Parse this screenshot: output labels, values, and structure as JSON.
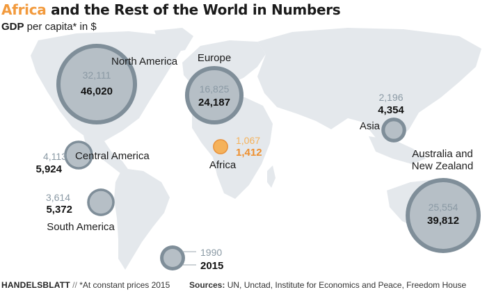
{
  "header": {
    "title_highlight": "Africa",
    "title_rest": " and the Rest of the World in Numbers",
    "subtitle_bold": "GDP",
    "subtitle_rest": " per capita* in $"
  },
  "footer": {
    "brand": "HANDELSBLATT",
    "separator": " // ",
    "note": "*At constant prices 2015",
    "sources_label": "Sources:",
    "sources_text": " UN, Unctad, Institute for Economics and Peace, Freedom House"
  },
  "colors": {
    "land": "#e4e8ec",
    "bubble_fill": "#b6bfc6",
    "bubble_ring": "#7f8e99",
    "africa_fill": "#f5b25b",
    "africa_ring": "#e8913a",
    "value_1990": "#8a99a4",
    "value_1990_africa": "#f5b25b",
    "value_2015": "#111111",
    "value_2015_africa": "#ee8f2e"
  },
  "chart_data": {
    "type": "bubble-map",
    "title": "Africa and the Rest of the World in Numbers",
    "subtitle": "GDP per capita* in $",
    "legend": {
      "labels": [
        "1990",
        "2015"
      ]
    },
    "series": [
      {
        "region": "North America",
        "y1990": 32111,
        "y2015": 46020,
        "y1990_label": "32,111",
        "y2015_label": "46,020"
      },
      {
        "region": "Europe",
        "y1990": 16825,
        "y2015": 24187,
        "y1990_label": "16,825",
        "y2015_label": "24,187"
      },
      {
        "region": "Central America",
        "y1990": 4113,
        "y2015": 5924,
        "y1990_label": "4,113",
        "y2015_label": "5,924"
      },
      {
        "region": "South America",
        "y1990": 3614,
        "y2015": 5372,
        "y1990_label": "3,614",
        "y2015_label": "5,372"
      },
      {
        "region": "Africa",
        "y1990": 1067,
        "y2015": 1412,
        "y1990_label": "1,067",
        "y2015_label": "1,412"
      },
      {
        "region": "Asia",
        "y1990": 2196,
        "y2015": 4354,
        "y1990_label": "2,196",
        "y2015_label": "4,354"
      },
      {
        "region": "Australia and\nNew Zealand",
        "y1990": 25554,
        "y2015": 39812,
        "y1990_label": "25,554",
        "y2015_label": "39,812"
      }
    ]
  }
}
